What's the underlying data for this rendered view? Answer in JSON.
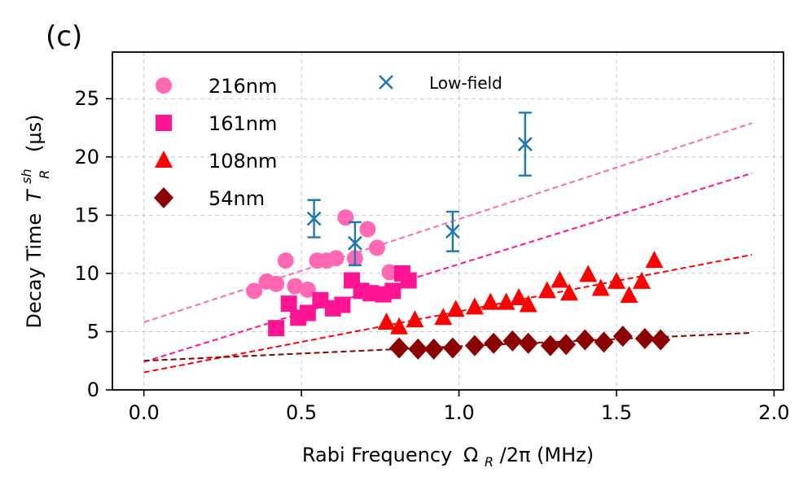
{
  "chart_data": {
    "type": "scatter",
    "panel_label": "(c)",
    "xlabel": "Rabi Frequency",
    "xlabel_symbol": "Ω",
    "xlabel_sub": "R",
    "xlabel_rest": "/2π (MHz)",
    "ylabel": "Decay Time",
    "ylabel_symbol": "T",
    "ylabel_sup": "sh",
    "ylabel_sub": "R",
    "ylabel_unit": "(μs)",
    "xlim": [
      -0.1,
      2.03
    ],
    "ylim": [
      0,
      29
    ],
    "xticks": [
      0.0,
      0.5,
      1.0,
      1.5,
      2.0
    ],
    "xtick_labels": [
      "0.0",
      "0.5",
      "1.0",
      "1.5",
      "2.0"
    ],
    "yticks": [
      0,
      5,
      10,
      15,
      20,
      25
    ],
    "ytick_labels": [
      "0",
      "5",
      "10",
      "15",
      "20",
      "25"
    ],
    "grid": true,
    "series": [
      {
        "name": "216nm",
        "marker": "circle",
        "color": "#ff69b4",
        "x": [
          0.35,
          0.39,
          0.42,
          0.45,
          0.48,
          0.52,
          0.55,
          0.58,
          0.61,
          0.64,
          0.67,
          0.71,
          0.74,
          0.78
        ],
        "y": [
          8.5,
          9.3,
          9.1,
          11.1,
          8.9,
          8.6,
          11.1,
          11.1,
          11.3,
          14.8,
          11.3,
          13.8,
          12.2,
          10.1
        ],
        "fit": {
          "x0": 0.0,
          "y0": 5.8,
          "x1": 1.93,
          "y1": 22.9
        }
      },
      {
        "name": "161nm",
        "marker": "square",
        "color": "#ff1493",
        "x": [
          0.42,
          0.46,
          0.49,
          0.52,
          0.56,
          0.6,
          0.63,
          0.66,
          0.69,
          0.72,
          0.76,
          0.79,
          0.82,
          0.84
        ],
        "y": [
          5.3,
          7.4,
          6.2,
          6.6,
          7.7,
          7.0,
          7.3,
          9.4,
          8.5,
          8.3,
          8.2,
          8.5,
          10.0,
          9.4
        ],
        "fit": {
          "x0": 0.0,
          "y0": 2.4,
          "x1": 1.93,
          "y1": 18.6
        }
      },
      {
        "name": "108nm",
        "marker": "triangle",
        "color": "#ff0000",
        "x": [
          0.77,
          0.81,
          0.86,
          0.95,
          0.99,
          1.05,
          1.1,
          1.15,
          1.19,
          1.22,
          1.28,
          1.32,
          1.35,
          1.41,
          1.45,
          1.5,
          1.54,
          1.58,
          1.62
        ],
        "y": [
          5.8,
          5.4,
          6.0,
          6.2,
          6.9,
          7.1,
          7.5,
          7.5,
          7.9,
          7.3,
          8.5,
          9.4,
          8.3,
          9.9,
          8.7,
          9.3,
          8.1,
          9.3,
          11.1
        ],
        "fit": {
          "x0": 0.0,
          "y0": 1.5,
          "x1": 1.93,
          "y1": 11.6
        }
      },
      {
        "name": "54nm",
        "marker": "diamond",
        "color": "#8b0000",
        "x": [
          0.81,
          0.87,
          0.92,
          0.98,
          1.05,
          1.11,
          1.17,
          1.22,
          1.29,
          1.34,
          1.4,
          1.46,
          1.52,
          1.59,
          1.64
        ],
        "y": [
          3.6,
          3.5,
          3.5,
          3.6,
          3.8,
          4.0,
          4.2,
          4.0,
          3.8,
          3.9,
          4.3,
          4.1,
          4.6,
          4.4,
          4.3
        ],
        "fit": {
          "x0": 0.0,
          "y0": 2.5,
          "x1": 1.93,
          "y1": 4.9
        }
      },
      {
        "name": "Low-field",
        "marker": "x",
        "color": "#1f77b4",
        "x": [
          0.54,
          0.67,
          0.98,
          1.21
        ],
        "y": [
          14.7,
          12.6,
          13.6,
          21.1
        ],
        "err_low": [
          13.1,
          10.7,
          11.9,
          18.4
        ],
        "err_high": [
          16.3,
          14.4,
          15.3,
          23.8
        ]
      }
    ],
    "legend": {
      "left": [
        "216nm",
        "161nm",
        "108nm",
        "54nm"
      ],
      "right": [
        "Low-field"
      ],
      "placement": "top-left"
    }
  }
}
